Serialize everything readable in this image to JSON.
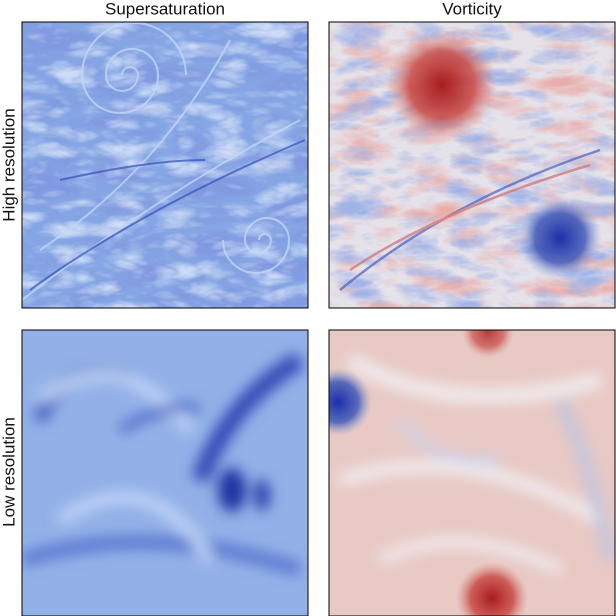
{
  "titles": {
    "columns": [
      "Supersaturation",
      "Vorticity"
    ],
    "rows": [
      "High resolution",
      "Low resolution"
    ]
  }
}
